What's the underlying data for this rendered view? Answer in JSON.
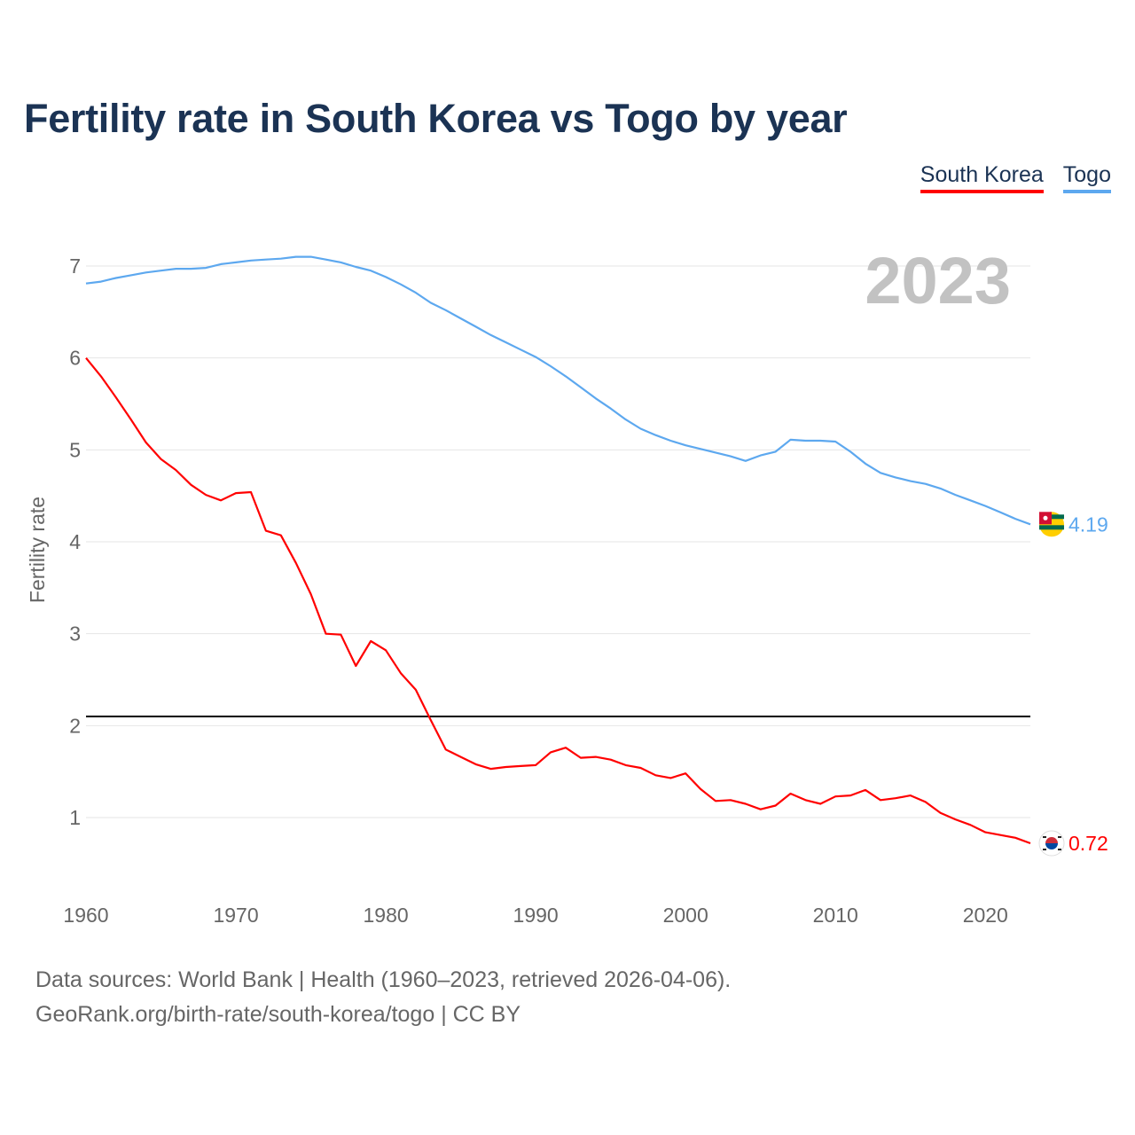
{
  "title": "Fertility rate in South Korea vs Togo by year",
  "legend": [
    {
      "label": "South Korea",
      "color": "#ff0000"
    },
    {
      "label": "Togo",
      "color": "#5da8ef"
    }
  ],
  "year_display": "2023",
  "footer": {
    "line1": "Data sources: World Bank | Health (1960–2023, retrieved 2026-04-06).",
    "line2": "GeoRank.org/birth-rate/south-korea/togo | CC BY"
  },
  "chart_data": {
    "type": "line",
    "title": "Fertility rate in South Korea vs Togo by year",
    "xlabel": "",
    "ylabel": "Fertility rate",
    "xlim": [
      1960,
      2023
    ],
    "ylim": [
      0,
      7.3
    ],
    "xticks": [
      "1960",
      "1970",
      "1980",
      "1990",
      "2000",
      "2010",
      "2020"
    ],
    "yticks": [
      "1",
      "2",
      "3",
      "4",
      "5",
      "6",
      "7"
    ],
    "grid": true,
    "legend_position": "top-right",
    "reference_line": 2.1,
    "x": [
      1960,
      1961,
      1962,
      1963,
      1964,
      1965,
      1966,
      1967,
      1968,
      1969,
      1970,
      1971,
      1972,
      1973,
      1974,
      1975,
      1976,
      1977,
      1978,
      1979,
      1980,
      1981,
      1982,
      1983,
      1984,
      1985,
      1986,
      1987,
      1988,
      1989,
      1990,
      1991,
      1992,
      1993,
      1994,
      1995,
      1996,
      1997,
      1998,
      1999,
      2000,
      2001,
      2002,
      2003,
      2004,
      2005,
      2006,
      2007,
      2008,
      2009,
      2010,
      2011,
      2012,
      2013,
      2014,
      2015,
      2016,
      2017,
      2018,
      2019,
      2020,
      2021,
      2022,
      2023
    ],
    "series": [
      {
        "name": "South Korea",
        "color": "#ff0000",
        "end_label": "0.72",
        "values": [
          6.0,
          5.8,
          5.57,
          5.33,
          5.08,
          4.9,
          4.78,
          4.62,
          4.51,
          4.45,
          4.53,
          4.54,
          4.12,
          4.07,
          3.77,
          3.43,
          3.0,
          2.99,
          2.65,
          2.92,
          2.82,
          2.57,
          2.39,
          2.06,
          1.74,
          1.66,
          1.58,
          1.53,
          1.55,
          1.56,
          1.57,
          1.71,
          1.76,
          1.65,
          1.66,
          1.63,
          1.57,
          1.54,
          1.46,
          1.43,
          1.48,
          1.31,
          1.18,
          1.19,
          1.15,
          1.09,
          1.13,
          1.26,
          1.19,
          1.15,
          1.23,
          1.24,
          1.3,
          1.19,
          1.21,
          1.24,
          1.17,
          1.05,
          0.98,
          0.92,
          0.84,
          0.81,
          0.78,
          0.72
        ]
      },
      {
        "name": "Togo",
        "color": "#5da8ef",
        "end_label": "4.19",
        "values": [
          6.81,
          6.83,
          6.87,
          6.9,
          6.93,
          6.95,
          6.97,
          6.97,
          6.98,
          7.02,
          7.04,
          7.06,
          7.07,
          7.08,
          7.1,
          7.1,
          7.07,
          7.04,
          6.99,
          6.95,
          6.88,
          6.8,
          6.71,
          6.6,
          6.52,
          6.43,
          6.34,
          6.25,
          6.17,
          6.09,
          6.01,
          5.91,
          5.8,
          5.68,
          5.56,
          5.45,
          5.33,
          5.23,
          5.16,
          5.1,
          5.05,
          5.01,
          4.97,
          4.93,
          4.88,
          4.94,
          4.98,
          5.11,
          5.1,
          5.1,
          5.09,
          4.98,
          4.85,
          4.75,
          4.7,
          4.66,
          4.63,
          4.58,
          4.51,
          4.45,
          4.39,
          4.32,
          4.25,
          4.19
        ]
      }
    ]
  }
}
